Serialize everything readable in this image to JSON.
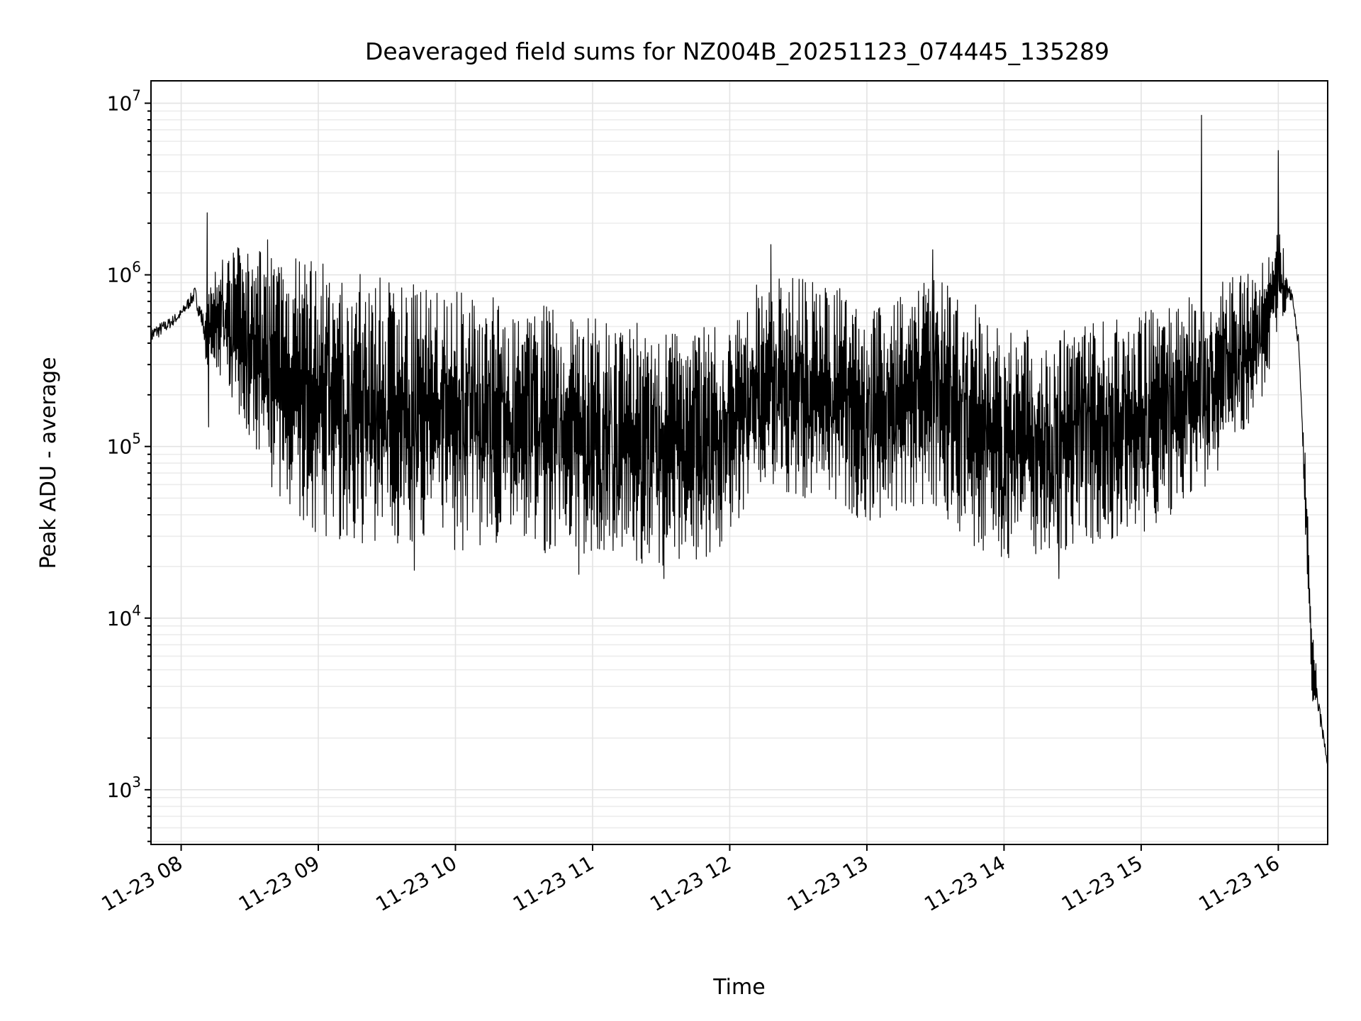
{
  "chart_data": {
    "type": "line",
    "title": "Deaveraged field sums for NZ004B_20251123_074445_135289",
    "xlabel": "Time",
    "ylabel": "Peak ADU - average",
    "yscale": "log",
    "ylim": [
      480,
      13500000
    ],
    "xlim_hours": [
      7.78,
      16.36
    ],
    "x_tick_labels": [
      "11-23 08",
      "11-23 09",
      "11-23 10",
      "11-23 11",
      "11-23 12",
      "11-23 13",
      "11-23 14",
      "11-23 15",
      "11-23 16"
    ],
    "x_tick_hours": [
      8,
      9,
      10,
      11,
      12,
      13,
      14,
      15,
      16
    ],
    "y_tick_labels": [
      {
        "base": "10",
        "exp": "3"
      },
      {
        "base": "10",
        "exp": "4"
      },
      {
        "base": "10",
        "exp": "5"
      },
      {
        "base": "10",
        "exp": "6"
      },
      {
        "base": "10",
        "exp": "7"
      }
    ],
    "y_tick_values": [
      1000,
      10000,
      100000,
      1000000,
      10000000
    ],
    "grid": true,
    "line_color": "#000000",
    "series": [
      {
        "name": "Peak ADU - average",
        "envelope_hours": [
          7.78,
          7.9,
          8.0,
          8.1,
          8.18,
          8.3,
          8.5,
          8.7,
          9.0,
          9.5,
          10.0,
          10.5,
          11.0,
          11.5,
          11.9,
          12.2,
          12.5,
          12.8,
          13.0,
          13.3,
          13.5,
          13.8,
          14.0,
          14.5,
          15.0,
          15.4,
          15.7,
          15.9,
          16.0,
          16.1,
          16.15,
          16.2,
          16.25,
          16.3,
          16.36
        ],
        "upper": [
          600000,
          620000,
          700000,
          1000000,
          700000,
          1400000,
          1500000,
          1400000,
          1200000,
          1000000,
          900000,
          700000,
          600000,
          500000,
          500000,
          900000,
          1000000,
          900000,
          600000,
          800000,
          1000000,
          700000,
          500000,
          500000,
          600000,
          800000,
          1000000,
          1300000,
          2000000,
          900000,
          500000,
          80000,
          8000,
          4000,
          1500
        ],
        "lower": [
          330000,
          420000,
          500000,
          600000,
          300000,
          250000,
          100000,
          50000,
          30000,
          26000,
          25000,
          24000,
          23000,
          20000,
          22000,
          60000,
          50000,
          45000,
          35000,
          45000,
          40000,
          25000,
          22000,
          25000,
          30000,
          50000,
          100000,
          200000,
          500000,
          600000,
          300000,
          20000,
          3000,
          2000,
          1300
        ],
        "spikes": [
          {
            "hour": 8.19,
            "value": 2300000
          },
          {
            "hour": 8.2,
            "value": 130000
          },
          {
            "hour": 8.63,
            "value": 1600000
          },
          {
            "hour": 9.7,
            "value": 19000
          },
          {
            "hour": 10.9,
            "value": 18000
          },
          {
            "hour": 11.52,
            "value": 17000
          },
          {
            "hour": 12.3,
            "value": 1500000
          },
          {
            "hour": 13.48,
            "value": 1400000
          },
          {
            "hour": 14.4,
            "value": 17000
          },
          {
            "hour": 15.44,
            "value": 8500000
          },
          {
            "hour": 16.0,
            "value": 5300000
          }
        ]
      }
    ]
  }
}
